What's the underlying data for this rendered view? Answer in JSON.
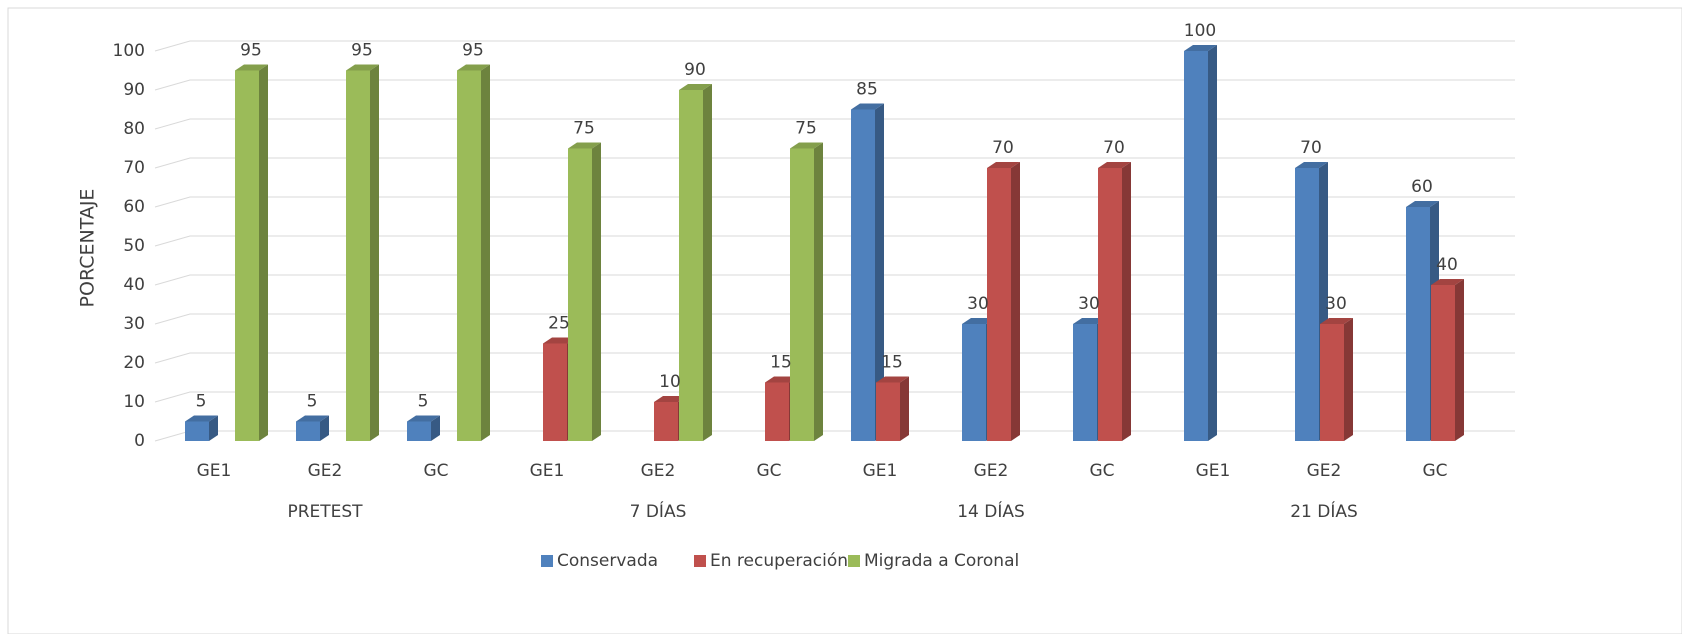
{
  "chart_data": {
    "type": "bar3d",
    "y_label": "PORCENTAJE",
    "categories": [
      "GE1",
      "GE2",
      "GC",
      "GE1",
      "GE2",
      "GC",
      "GE1",
      "GE2",
      "GC",
      "GE1",
      "GE2",
      "GC"
    ],
    "category_groups": [
      "PRETEST",
      "7 DÍAS",
      "14 DÍAS",
      "21 DÍAS"
    ],
    "series": [
      {
        "name": "Conservada",
        "color": "#4f81bd",
        "values": [
          5,
          5,
          5,
          null,
          null,
          null,
          85,
          30,
          30,
          100,
          70,
          60
        ]
      },
      {
        "name": "En recuperación",
        "color": "#c0504d",
        "values": [
          null,
          null,
          null,
          25,
          10,
          15,
          15,
          70,
          70,
          null,
          30,
          40
        ]
      },
      {
        "name": "Migrada a Coronal",
        "color": "#9bbb59",
        "values": [
          95,
          95,
          95,
          75,
          90,
          75,
          null,
          null,
          null,
          null,
          null,
          null
        ]
      }
    ],
    "ylim": [
      0,
      100
    ],
    "yticks": [
      0,
      10,
      20,
      30,
      40,
      50,
      60,
      70,
      80,
      90,
      100
    ],
    "grid": true,
    "legend": "bottom"
  }
}
